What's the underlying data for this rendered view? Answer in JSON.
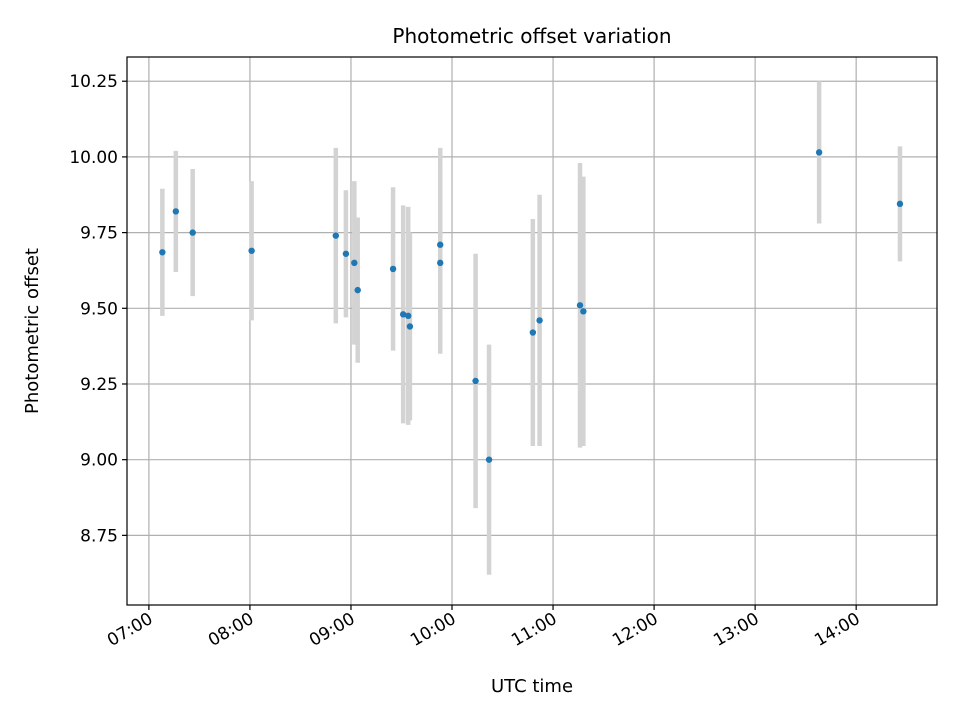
{
  "chart_data": {
    "type": "scatter",
    "title": "Photometric offset variation",
    "xlabel": "UTC time",
    "ylabel": "Photometric offset",
    "x_scale": "time",
    "xlim": [
      "06:47",
      "14:48"
    ],
    "ylim": [
      8.52,
      10.33
    ],
    "x_ticks": [
      "07:00",
      "08:00",
      "09:00",
      "10:00",
      "11:00",
      "12:00",
      "13:00",
      "14:00"
    ],
    "y_ticks": [
      "8.75",
      "9.00",
      "9.25",
      "9.50",
      "9.75",
      "10.00",
      "10.25"
    ],
    "grid": true,
    "legend": "none",
    "colors": {
      "point": "#1f77b4",
      "errorbar": "#d3d3d3",
      "grid": "#b0b0b0"
    },
    "points": [
      {
        "time": "07:08",
        "y": 9.685,
        "yerr": 0.21
      },
      {
        "time": "07:16",
        "y": 9.82,
        "yerr": 0.2
      },
      {
        "time": "07:26",
        "y": 9.75,
        "yerr": 0.21
      },
      {
        "time": "08:01",
        "y": 9.69,
        "yerr": 0.23
      },
      {
        "time": "08:51",
        "y": 9.74,
        "yerr": 0.29
      },
      {
        "time": "08:57",
        "y": 9.68,
        "yerr": 0.21
      },
      {
        "time": "09:02",
        "y": 9.65,
        "yerr": 0.27
      },
      {
        "time": "09:04",
        "y": 9.56,
        "yerr": 0.24
      },
      {
        "time": "09:25",
        "y": 9.63,
        "yerr": 0.27
      },
      {
        "time": "09:31",
        "y": 9.48,
        "yerr": 0.36
      },
      {
        "time": "09:34",
        "y": 9.475,
        "yerr": 0.36
      },
      {
        "time": "09:35",
        "y": 9.44,
        "yerr": 0.31
      },
      {
        "time": "09:53",
        "y": 9.71,
        "yerr": 0.32
      },
      {
        "time": "09:53",
        "y": 9.65,
        "yerr": 0.3
      },
      {
        "time": "10:14",
        "y": 9.26,
        "yerr": 0.42
      },
      {
        "time": "10:22",
        "y": 9.0,
        "yerr": 0.38
      },
      {
        "time": "10:48",
        "y": 9.42,
        "yerr": 0.375
      },
      {
        "time": "10:52",
        "y": 9.46,
        "yerr": 0.415
      },
      {
        "time": "11:16",
        "y": 9.51,
        "yerr": 0.47
      },
      {
        "time": "11:18",
        "y": 9.49,
        "yerr": 0.445
      },
      {
        "time": "13:38",
        "y": 10.015,
        "yerr": 0.235
      },
      {
        "time": "14:26",
        "y": 9.845,
        "yerr": 0.19
      }
    ]
  }
}
